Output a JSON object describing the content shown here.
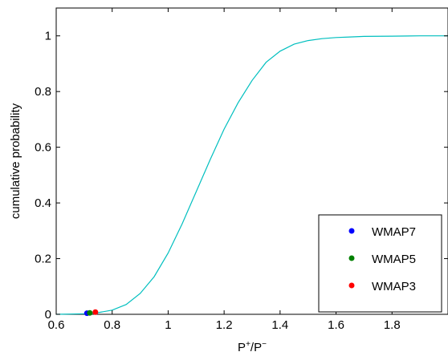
{
  "chart_data": {
    "type": "line",
    "title": "",
    "xlabel": {
      "base": "P",
      "sup1": "+",
      "mid": "/P",
      "sup2": "−"
    },
    "ylabel": "cumulative probability",
    "xlim": [
      0.6,
      2.0
    ],
    "ylim": [
      0,
      1.1
    ],
    "xticks": [
      0.6,
      0.8,
      1.0,
      1.2,
      1.4,
      1.6,
      1.8
    ],
    "xtick_labels": [
      "0.6",
      "0.8",
      "1",
      "1.2",
      "1.4",
      "1.6",
      "1.8"
    ],
    "yticks": [
      0,
      0.2,
      0.4,
      0.6,
      0.8,
      1.0
    ],
    "ytick_labels": [
      "0",
      "0.2",
      "0.4",
      "0.6",
      "0.8",
      "1"
    ],
    "grid": false,
    "legend_position": "bottom-right",
    "series": [
      {
        "kind": "line",
        "color": "#00bfbf",
        "x": [
          0.6,
          0.65,
          0.7,
          0.75,
          0.8,
          0.85,
          0.9,
          0.95,
          1.0,
          1.05,
          1.1,
          1.15,
          1.2,
          1.25,
          1.3,
          1.35,
          1.4,
          1.45,
          1.5,
          1.55,
          1.6,
          1.65,
          1.7,
          1.8,
          1.9,
          2.0
        ],
        "y": [
          0.0,
          0.001,
          0.002,
          0.006,
          0.015,
          0.035,
          0.075,
          0.135,
          0.22,
          0.325,
          0.44,
          0.555,
          0.665,
          0.76,
          0.84,
          0.905,
          0.945,
          0.97,
          0.983,
          0.99,
          0.994,
          0.996,
          0.998,
          0.999,
          1.0,
          1.0
        ]
      }
    ],
    "points": [
      {
        "name": "WMAP7",
        "color": "#0000ff",
        "x": 0.71,
        "y": 0.004
      },
      {
        "name": "WMAP5",
        "color": "#008000",
        "x": 0.72,
        "y": 0.005
      },
      {
        "name": "WMAP3",
        "color": "#ff0000",
        "x": 0.74,
        "y": 0.008
      }
    ]
  }
}
